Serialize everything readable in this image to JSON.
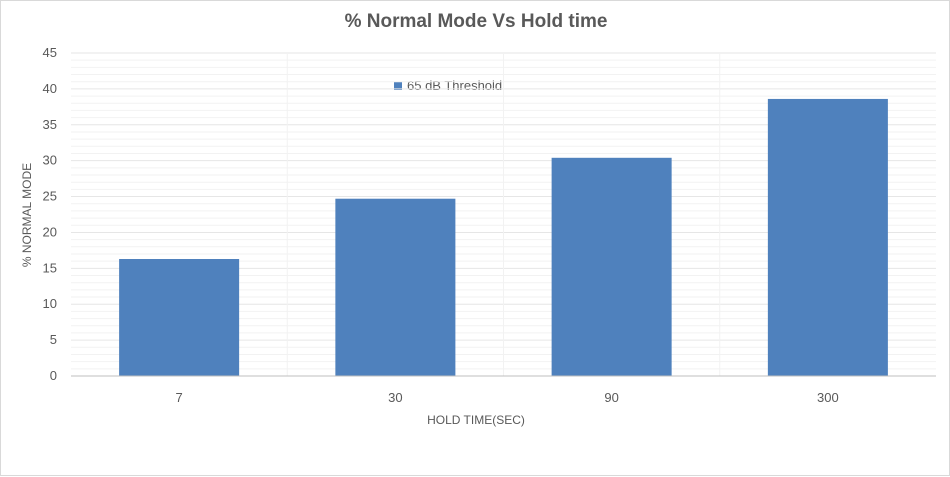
{
  "chart_data": {
    "type": "bar",
    "title": "% Normal Mode Vs Hold time",
    "xlabel": "HOLD TIME(SEC)",
    "ylabel": "% NORMAL MODE",
    "categories": [
      "7",
      "30",
      "90",
      "300"
    ],
    "series": [
      {
        "name": "65 dB Threshold",
        "values": [
          16.3,
          24.7,
          30.4,
          38.6
        ]
      }
    ],
    "ylim": [
      0,
      45
    ],
    "yticks": [
      "0",
      "5",
      "10",
      "15",
      "20",
      "25",
      "30",
      "35",
      "40",
      "45"
    ],
    "grid": true,
    "legend_position": "top-center",
    "colors": {
      "bar": "#4f81bd",
      "grid": "#e6e6e6",
      "axis": "#bfbfbf",
      "text": "#595959"
    }
  }
}
